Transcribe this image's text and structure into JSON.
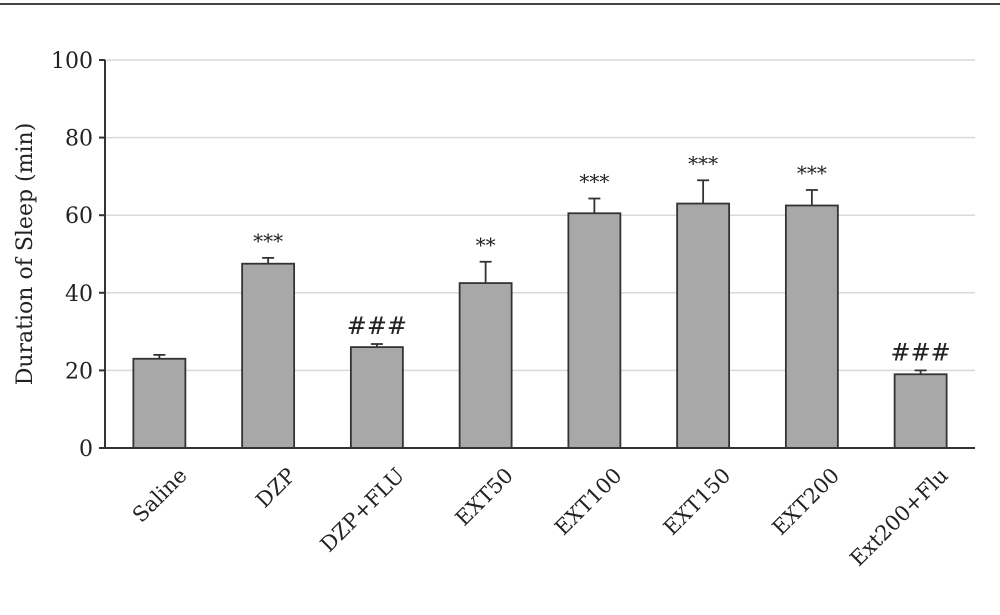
{
  "chart_data": {
    "type": "bar",
    "title": "",
    "xlabel": "",
    "ylabel": "Duration of Sleep (min)",
    "ylim": [
      0,
      100
    ],
    "yticks": [
      0,
      20,
      40,
      60,
      80,
      100
    ],
    "grid": true,
    "legend": "none",
    "categories": [
      "Saline",
      "DZP",
      "DZP+FLU",
      "EXT50",
      "EXT100",
      "EXT150",
      "EXT200",
      "Ext200+Flu"
    ],
    "values": [
      23.0,
      47.5,
      26.0,
      42.5,
      60.5,
      63.0,
      62.5,
      19.0
    ],
    "errors": [
      1.0,
      1.5,
      0.8,
      5.5,
      3.8,
      6.0,
      4.0,
      1.0
    ],
    "annotations": [
      "",
      "***",
      "###",
      "**",
      "***",
      "***",
      "***",
      "###"
    ],
    "bar_color": "#a8a8a8",
    "bar_edge_color": "#333333",
    "grid_color": "#d9d9d9"
  }
}
